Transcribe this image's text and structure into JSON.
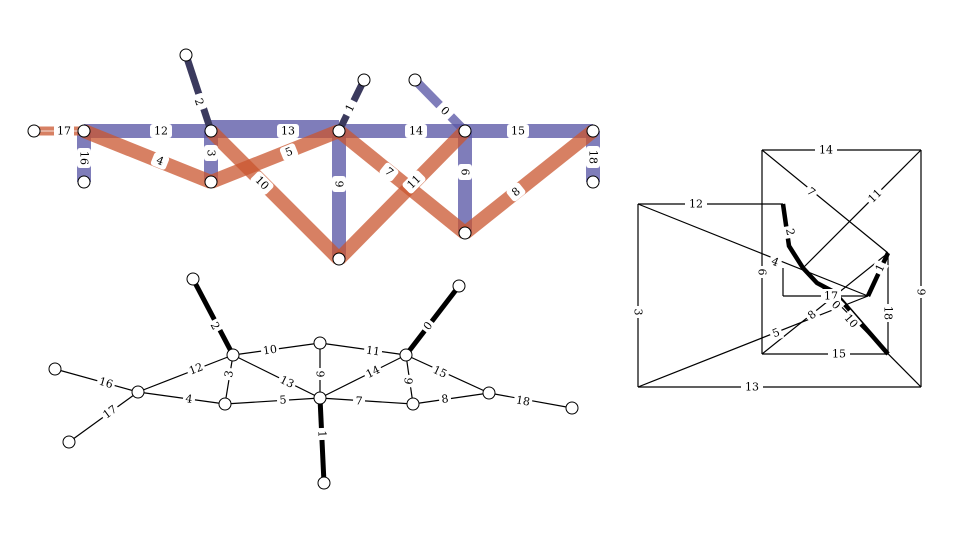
{
  "top_diagram": {
    "nodes": [
      "17L",
      "17R",
      "16B",
      "2T",
      "12R",
      "3B",
      "1T",
      "0T",
      "0B",
      "15R",
      "18B",
      "9B",
      "6B"
    ],
    "edges": [
      {
        "label": "17",
        "kind": "red-double",
        "a": "17L",
        "b": "17R"
      },
      {
        "label": "12",
        "kind": "blue",
        "a": "17R",
        "b": "12R"
      },
      {
        "label": "16",
        "kind": "blue",
        "a": "17R",
        "b": "16B"
      },
      {
        "label": "4",
        "kind": "red",
        "a": "17R",
        "b": "3B"
      },
      {
        "label": "2",
        "kind": "dark",
        "a": "2T",
        "b": "12R"
      },
      {
        "label": "3",
        "kind": "blue",
        "a": "12R",
        "b": "3B"
      },
      {
        "label": "13",
        "kind": "blue",
        "a": "12R",
        "b": "1T"
      },
      {
        "label": "10",
        "kind": "red",
        "a": "12R",
        "b": "9B"
      },
      {
        "label": "5",
        "kind": "red",
        "a": "3B",
        "b": "1T"
      },
      {
        "label": "1",
        "kind": "dark",
        "a": "1T",
        "b": "1A"
      },
      {
        "label": "9",
        "kind": "blue",
        "a": "1T",
        "b": "9B"
      },
      {
        "label": "14",
        "kind": "blue",
        "a": "1T",
        "b": "0B"
      },
      {
        "label": "7",
        "kind": "red",
        "a": "1T",
        "b": "6B"
      },
      {
        "label": "0",
        "kind": "dark",
        "a": "0T",
        "b": "0B"
      },
      {
        "label": "15",
        "kind": "blue",
        "a": "0B",
        "b": "15R"
      },
      {
        "label": "11",
        "kind": "red",
        "a": "9B",
        "b": "0B"
      },
      {
        "label": "6",
        "kind": "blue",
        "a": "0B",
        "b": "6B"
      },
      {
        "label": "8",
        "kind": "red",
        "a": "6B",
        "b": "15R"
      },
      {
        "label": "18",
        "kind": "blue",
        "a": "15R",
        "b": "18B"
      }
    ]
  },
  "bottom_diagram": {
    "edges": [
      {
        "label": "2",
        "w": 5
      },
      {
        "label": "10",
        "w": 1.2
      },
      {
        "label": "11",
        "w": 1.2
      },
      {
        "label": "0",
        "w": 5
      },
      {
        "label": "12",
        "w": 1.2
      },
      {
        "label": "3",
        "w": 1.2
      },
      {
        "label": "13",
        "w": 1.2
      },
      {
        "label": "9",
        "w": 1.2
      },
      {
        "label": "14",
        "w": 1.2
      },
      {
        "label": "6",
        "w": 1.2
      },
      {
        "label": "15",
        "w": 1.2
      },
      {
        "label": "16",
        "w": 1.2
      },
      {
        "label": "17",
        "w": 1.2
      },
      {
        "label": "4",
        "w": 1.2
      },
      {
        "label": "5",
        "w": 1.2
      },
      {
        "label": "7",
        "w": 1.2
      },
      {
        "label": "8",
        "w": 1.2
      },
      {
        "label": "18",
        "w": 1.2
      },
      {
        "label": "1",
        "w": 5
      }
    ]
  },
  "right_diagram": {
    "edges": [
      {
        "label": "14"
      },
      {
        "label": "7"
      },
      {
        "label": "11"
      },
      {
        "label": "12"
      },
      {
        "label": "2"
      },
      {
        "label": "4"
      },
      {
        "label": "6"
      },
      {
        "label": "1"
      },
      {
        "label": "3"
      },
      {
        "label": "17"
      },
      {
        "label": "9"
      },
      {
        "label": "0"
      },
      {
        "label": "18"
      },
      {
        "label": "10"
      },
      {
        "label": "8"
      },
      {
        "label": "5"
      },
      {
        "label": "15"
      },
      {
        "label": "13"
      }
    ]
  }
}
